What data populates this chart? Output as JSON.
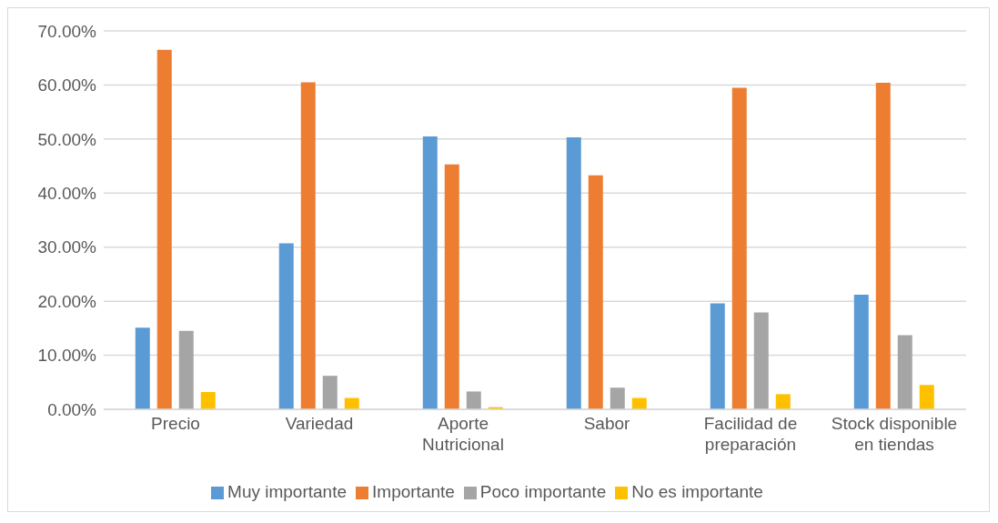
{
  "chart_data": {
    "type": "bar",
    "categories": [
      "Precio",
      "Variedad",
      "Aporte Nutricional",
      "Sabor",
      "Facilidad de preparación",
      "Stock disponible en tiendas"
    ],
    "series": [
      {
        "name": "Muy importante",
        "color": "#5b9bd5",
        "values": [
          15.1,
          30.7,
          50.5,
          50.3,
          19.6,
          21.2
        ]
      },
      {
        "name": "Importante",
        "color": "#ed7d31",
        "values": [
          66.5,
          60.5,
          45.3,
          43.3,
          59.5,
          60.4
        ]
      },
      {
        "name": "Poco importante",
        "color": "#a5a5a5",
        "values": [
          14.5,
          6.2,
          3.3,
          4.0,
          17.9,
          13.7
        ]
      },
      {
        "name": "No es importante",
        "color": "#ffc000",
        "values": [
          3.2,
          2.1,
          0.4,
          2.1,
          2.8,
          4.5
        ]
      }
    ],
    "ylim": [
      0,
      70
    ],
    "yticks": [
      {
        "value": 0,
        "label": "0.00%"
      },
      {
        "value": 10,
        "label": "10.00%"
      },
      {
        "value": 20,
        "label": "20.00%"
      },
      {
        "value": 30,
        "label": "30.00%"
      },
      {
        "value": 40,
        "label": "40.00%"
      },
      {
        "value": 50,
        "label": "50.00%"
      },
      {
        "value": 60,
        "label": "60.00%"
      },
      {
        "value": 70,
        "label": "70.00%"
      }
    ],
    "grid": "y",
    "legend": "bottom"
  }
}
